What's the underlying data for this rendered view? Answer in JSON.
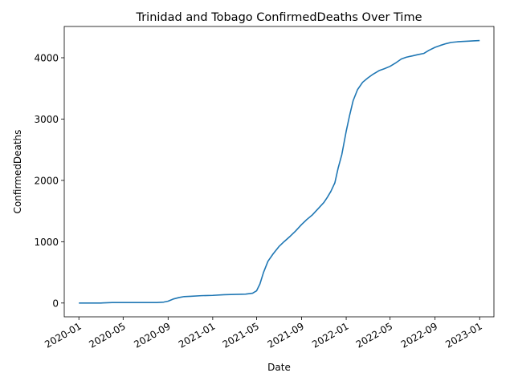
{
  "chart_data": {
    "type": "line",
    "title": "Trinidad and Tobago  ConfirmedDeaths Over Time",
    "xlabel": "Date",
    "ylabel": "ConfirmedDeaths",
    "x_ticks": [
      "2020-01",
      "2020-05",
      "2020-09",
      "2021-01",
      "2021-05",
      "2021-09",
      "2022-01",
      "2022-05",
      "2022-09",
      "2023-01"
    ],
    "y_ticks": [
      0,
      1000,
      2000,
      3000,
      4000
    ],
    "xlim": [
      "2019-11-22",
      "2023-02-09"
    ],
    "ylim": [
      -225,
      4510
    ],
    "grid": false,
    "color": "#1f77b4",
    "series": [
      {
        "x": [
          "2020-01-01",
          "2020-03-01",
          "2020-04-01",
          "2020-06-01",
          "2020-08-01",
          "2020-08-20",
          "2020-09-01",
          "2020-09-15",
          "2020-10-01",
          "2020-10-15",
          "2020-11-01",
          "2020-12-01",
          "2021-01-01",
          "2021-02-01",
          "2021-03-01",
          "2021-04-01",
          "2021-04-20",
          "2021-05-01",
          "2021-05-10",
          "2021-05-20",
          "2021-06-01",
          "2021-06-15",
          "2021-07-01",
          "2021-07-15",
          "2021-08-01",
          "2021-08-15",
          "2021-09-01",
          "2021-09-15",
          "2021-10-01",
          "2021-10-15",
          "2021-11-01",
          "2021-11-10",
          "2021-11-20",
          "2021-12-01",
          "2021-12-10",
          "2021-12-20",
          "2022-01-01",
          "2022-01-10",
          "2022-01-20",
          "2022-02-01",
          "2022-02-15",
          "2022-03-01",
          "2022-03-15",
          "2022-04-01",
          "2022-04-15",
          "2022-05-01",
          "2022-05-15",
          "2022-06-01",
          "2022-06-15",
          "2022-07-01",
          "2022-07-15",
          "2022-08-01",
          "2022-08-15",
          "2022-09-01",
          "2022-09-15",
          "2022-10-01",
          "2022-10-15",
          "2022-11-01",
          "2022-11-15",
          "2022-12-01",
          "2022-12-15",
          "2023-01-01"
        ],
        "y": [
          0,
          0,
          8,
          8,
          8,
          15,
          30,
          65,
          90,
          105,
          110,
          120,
          125,
          135,
          140,
          145,
          160,
          200,
          310,
          500,
          680,
          800,
          920,
          1000,
          1090,
          1170,
          1280,
          1360,
          1440,
          1530,
          1640,
          1720,
          1820,
          1960,
          2200,
          2420,
          2800,
          3050,
          3300,
          3480,
          3600,
          3670,
          3730,
          3790,
          3820,
          3860,
          3910,
          3980,
          4010,
          4030,
          4050,
          4070,
          4120,
          4170,
          4200,
          4230,
          4250,
          4260,
          4265,
          4270,
          4275,
          4280
        ]
      }
    ]
  }
}
